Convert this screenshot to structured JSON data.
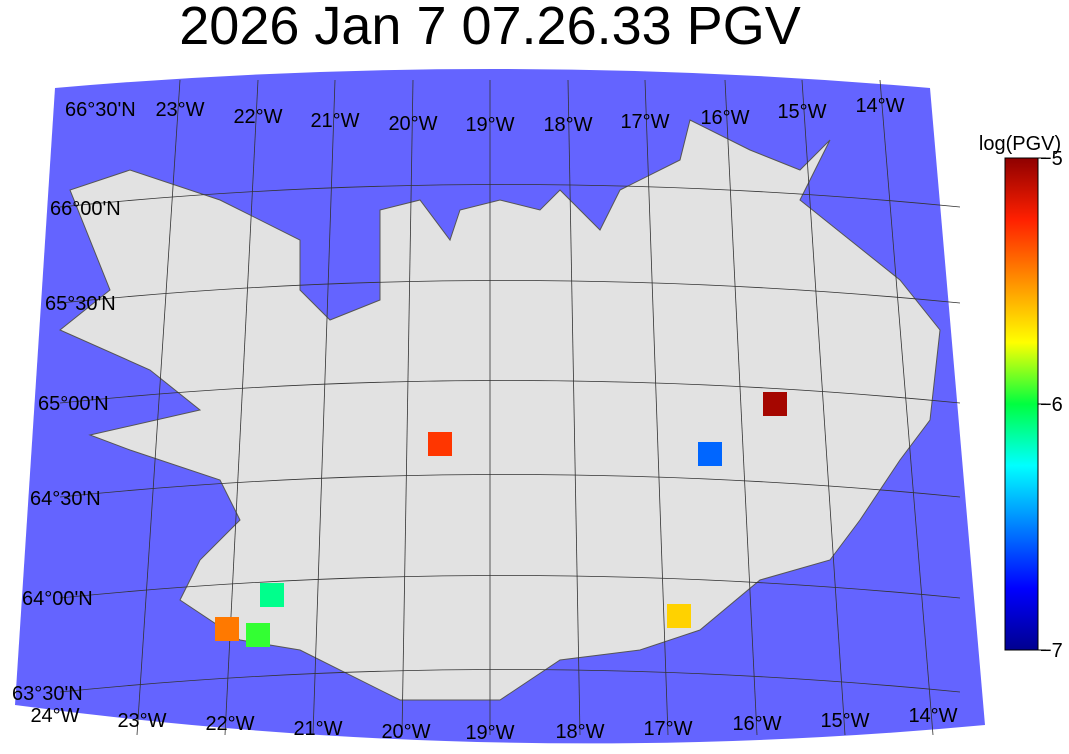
{
  "title": "2026 Jan 7 07.26.33 PGV",
  "top_labels": [
    "66°30'N",
    "23°W",
    "22°W",
    "21°W",
    "20°W",
    "19°W",
    "18°W",
    "17°W",
    "16°W",
    "15°W",
    "14°W"
  ],
  "lat_labels": [
    "66°00'N",
    "65°30'N",
    "65°00'N",
    "64°30'N",
    "64°00'N",
    "63°30'N"
  ],
  "bottom_labels": [
    "24°W",
    "23°W",
    "22°W",
    "21°W",
    "20°W",
    "19°W",
    "18°W",
    "17°W",
    "16°W",
    "15°W",
    "14°W"
  ],
  "colorbar": {
    "label": "log(PGV)",
    "lim": [
      -7,
      -5
    ],
    "ticks": [
      {
        "value": -5,
        "label": "−5"
      },
      {
        "value": -6,
        "label": "−6"
      },
      {
        "value": -7,
        "label": "−7"
      }
    ]
  },
  "stations": {
    "values": [
      -5.05,
      -5.3,
      -6.55,
      -6.1,
      -5.45,
      -5.95,
      -5.65
    ]
  }
}
